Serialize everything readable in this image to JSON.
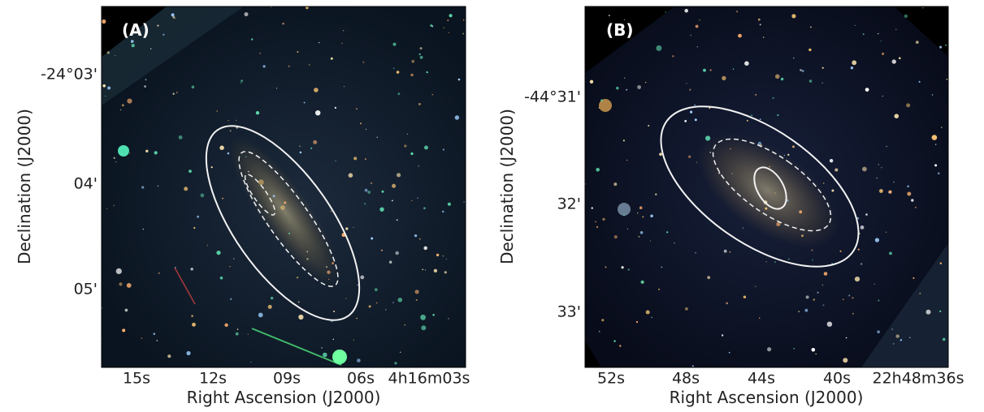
{
  "panels": [
    {
      "label": "(A)",
      "xlabel": "Right Ascension (J2000)",
      "ylabel": "Declination (J2000)",
      "xticks": [
        "15s",
        "12s",
        "09s",
        "06s",
        "4h16m03s"
      ],
      "yticks": [
        "-24°03'",
        "04'",
        "05'"
      ]
    },
    {
      "label": "(B)",
      "xlabel": "Right Ascension (J2000)",
      "ylabel": "Declination (J2000)",
      "xticks": [
        "52s",
        "48s",
        "44s",
        "40s",
        "22h48m36s"
      ],
      "yticks": [
        "-44°31'",
        "32'",
        "33'"
      ]
    }
  ]
}
